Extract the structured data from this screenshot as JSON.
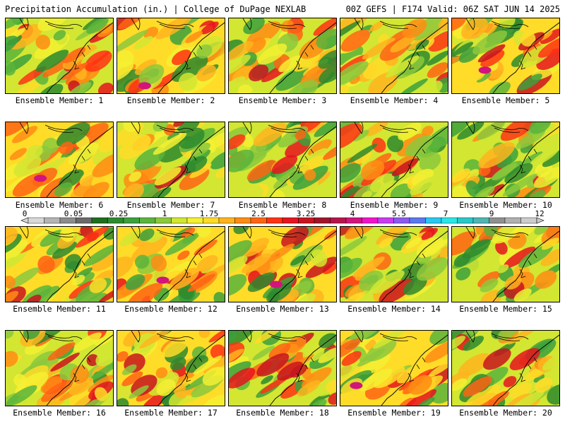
{
  "header": {
    "left": "Precipitation Accumulation (in.) | College of DuPage NEXLAB",
    "right": "00Z GEFS | F174 Valid: 06Z SAT JUN 14 2025"
  },
  "members": [
    {
      "label": "Ensemble Member: 1"
    },
    {
      "label": "Ensemble Member: 2"
    },
    {
      "label": "Ensemble Member: 3"
    },
    {
      "label": "Ensemble Member: 4"
    },
    {
      "label": "Ensemble Member: 5"
    },
    {
      "label": "Ensemble Member: 6"
    },
    {
      "label": "Ensemble Member: 7"
    },
    {
      "label": "Ensemble Member: 8"
    },
    {
      "label": "Ensemble Member: 9"
    },
    {
      "label": "Ensemble Member: 10"
    },
    {
      "label": "Ensemble Member: 11"
    },
    {
      "label": "Ensemble Member: 12"
    },
    {
      "label": "Ensemble Member: 13"
    },
    {
      "label": "Ensemble Member: 14"
    },
    {
      "label": "Ensemble Member: 15"
    },
    {
      "label": "Ensemble Member: 16"
    },
    {
      "label": "Ensemble Member: 17"
    },
    {
      "label": "Ensemble Member: 18"
    },
    {
      "label": "Ensemble Member: 19"
    },
    {
      "label": "Ensemble Member: 20"
    }
  ],
  "colorbar": {
    "tick_labels": [
      "0",
      "0.05",
      "0.25",
      "1",
      "1.75",
      "2.5",
      "3.25",
      "4",
      "5.5",
      "7",
      "9",
      "12"
    ],
    "colors": [
      "#d8d8d8",
      "#b4b4b4",
      "#8c8c8c",
      "#6a6a6a",
      "#1e6e1e",
      "#2e8a2e",
      "#3ca03c",
      "#5ab43c",
      "#8cc83c",
      "#d2e632",
      "#f5f032",
      "#ffdc28",
      "#ffb41e",
      "#ff8c14",
      "#ff6414",
      "#ff3214",
      "#e6141e",
      "#c8141e",
      "#a01428",
      "#b4144b",
      "#d2147d",
      "#f014c8",
      "#c83cf0",
      "#8c5af0",
      "#5a78f0",
      "#28c8f0",
      "#28e6e6",
      "#28c8c8",
      "#50b4b4",
      "#909090",
      "#b0b0b0",
      "#cccccc"
    ]
  }
}
